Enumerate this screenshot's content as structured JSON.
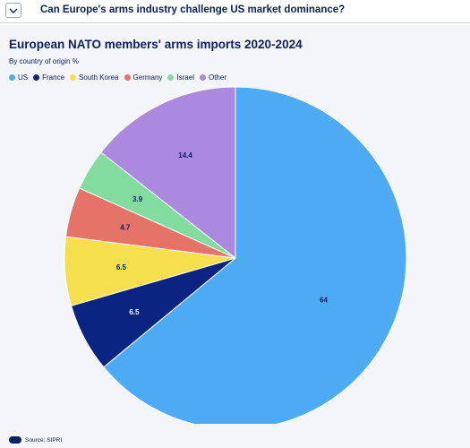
{
  "header": {
    "question": "Can Europe's arms industry challenge US market dominance?",
    "toggle_icon": "chevron-down-icon"
  },
  "chart_data": {
    "type": "pie",
    "title": "European NATO members' arms imports 2020-2024",
    "subtitle": "By country of origin %",
    "legend_placement": "top-left",
    "categories": [
      "US",
      "France",
      "South Korea",
      "Germany",
      "Israel",
      "Other"
    ],
    "values": [
      64,
      6.5,
      6.5,
      4.7,
      3.9,
      14.4
    ],
    "labels": [
      "64",
      "6.5",
      "6.5",
      "4.7",
      "3.9",
      "14.4"
    ],
    "colors": [
      "#4dabf5",
      "#0c2481",
      "#f6df4d",
      "#e57368",
      "#82dca0",
      "#ab89de"
    ],
    "label_colors": [
      "#0a2166",
      "#ffffff",
      "#0a2166",
      "#0a2166",
      "#0a2166",
      "#0a2166"
    ],
    "start": "12 o'clock",
    "direction": "clockwise"
  },
  "footer": {
    "source": "Source: SIPRI"
  }
}
